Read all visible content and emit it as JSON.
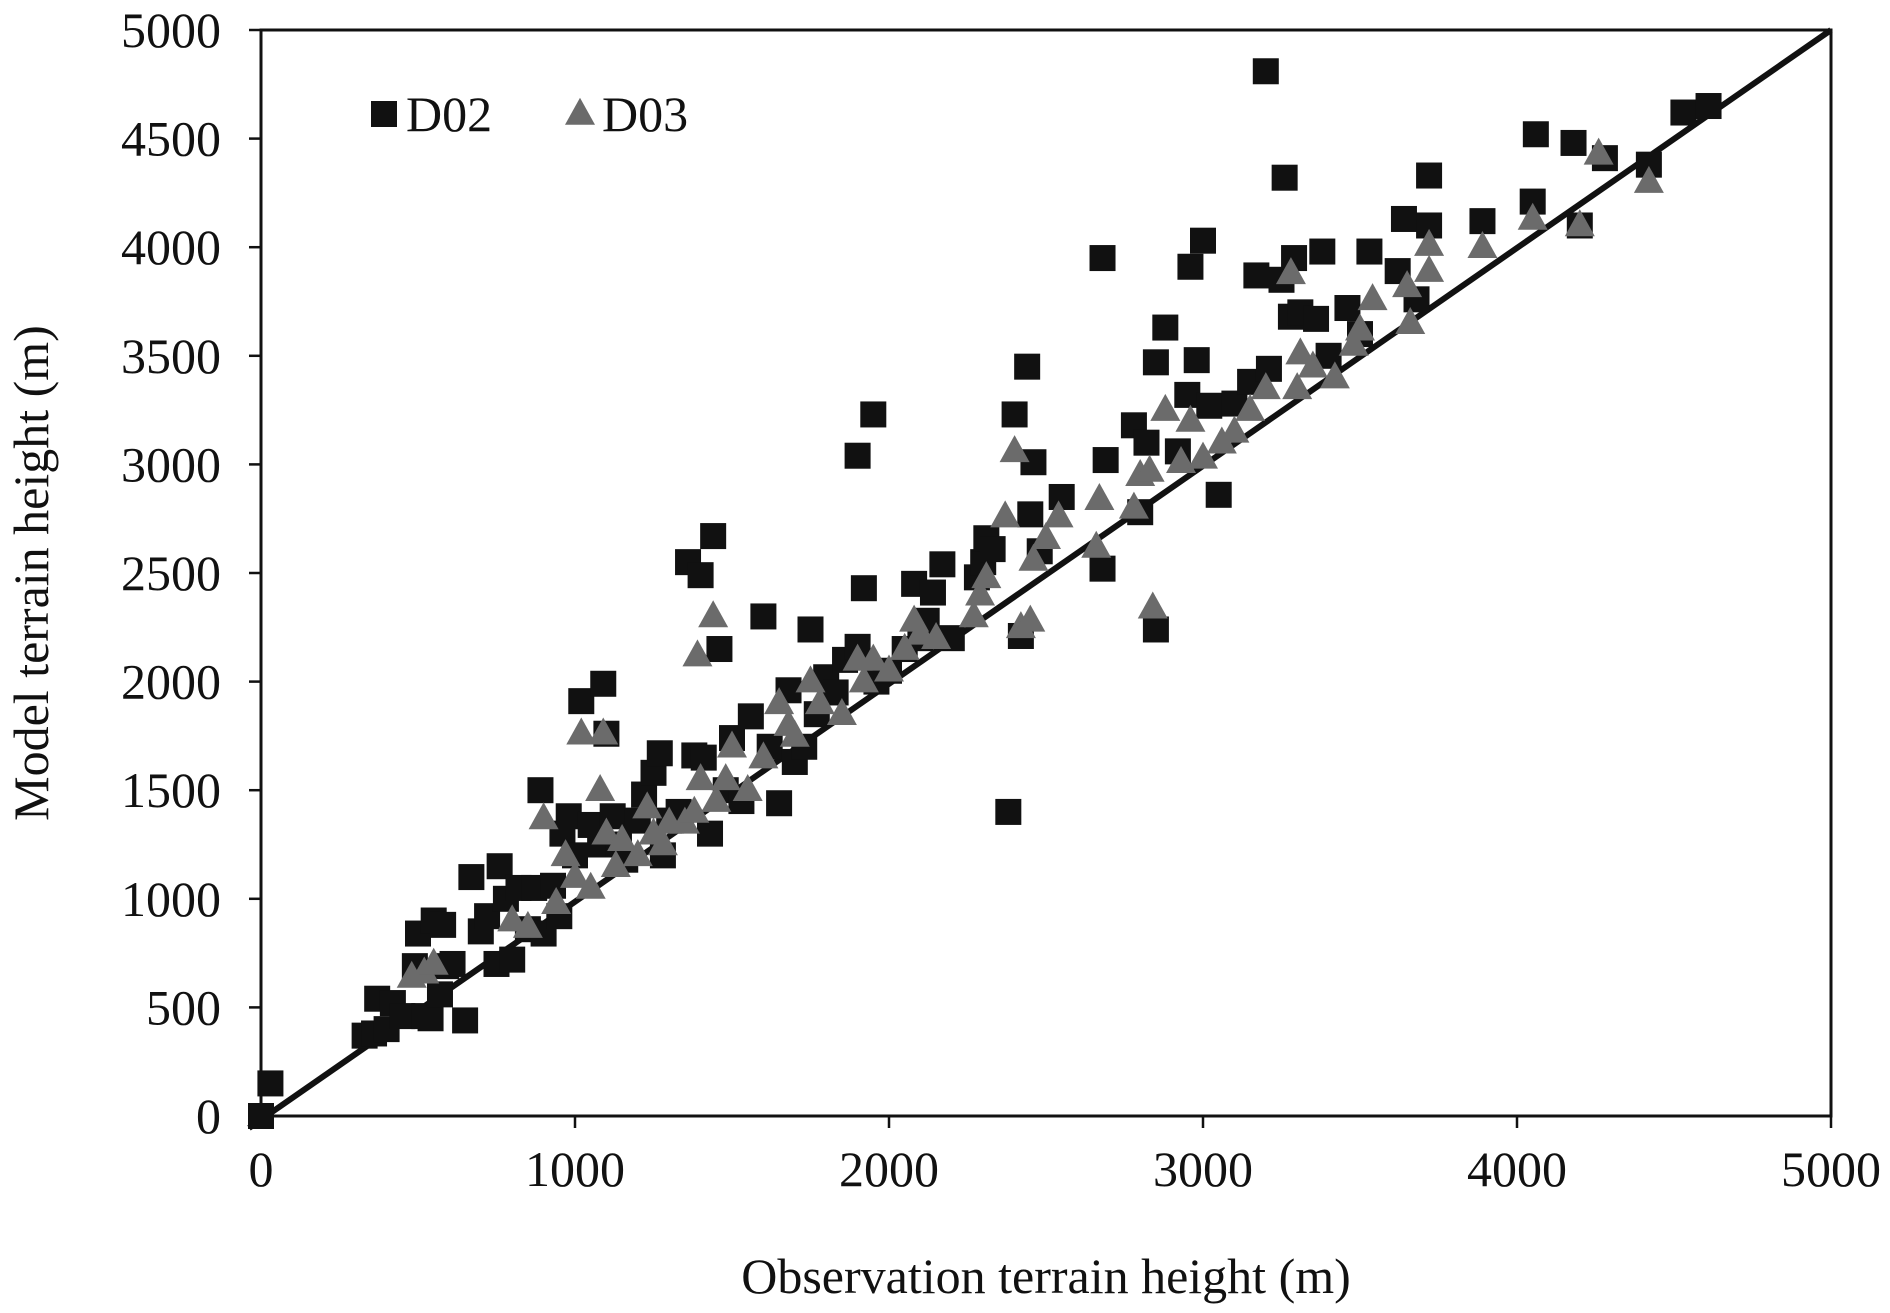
{
  "chart_data": {
    "type": "scatter",
    "title": "",
    "xlabel": "Observation terrain height (m)",
    "ylabel": "Model terrain height (m)",
    "xlim": [
      0,
      5000
    ],
    "ylim": [
      0,
      5000
    ],
    "xticks": [
      "0",
      "1000",
      "2000",
      "3000",
      "4000",
      "5000"
    ],
    "yticks": [
      "0",
      "500",
      "1000",
      "1500",
      "2000",
      "2500",
      "3000",
      "3500",
      "4000",
      "4500",
      "5000"
    ],
    "grid": false,
    "legend_position": "top-left",
    "reference_line": {
      "type": "1:1",
      "from": [
        0,
        0
      ],
      "to": [
        5000,
        5000
      ],
      "color": "#111111"
    },
    "series": [
      {
        "name": "D02",
        "marker": "square",
        "color": "#111111",
        "points": [
          [
            0,
            0
          ],
          [
            30,
            150
          ],
          [
            330,
            370
          ],
          [
            360,
            380
          ],
          [
            370,
            540
          ],
          [
            400,
            400
          ],
          [
            420,
            520
          ],
          [
            450,
            460
          ],
          [
            490,
            690
          ],
          [
            500,
            840
          ],
          [
            520,
            460
          ],
          [
            540,
            450
          ],
          [
            550,
            900
          ],
          [
            570,
            560
          ],
          [
            580,
            880
          ],
          [
            590,
            690
          ],
          [
            610,
            700
          ],
          [
            650,
            440
          ],
          [
            670,
            1100
          ],
          [
            700,
            850
          ],
          [
            720,
            920
          ],
          [
            750,
            700
          ],
          [
            760,
            1150
          ],
          [
            780,
            1000
          ],
          [
            800,
            720
          ],
          [
            820,
            1050
          ],
          [
            850,
            860
          ],
          [
            870,
            1050
          ],
          [
            890,
            1500
          ],
          [
            900,
            840
          ],
          [
            930,
            1060
          ],
          [
            950,
            920
          ],
          [
            960,
            1300
          ],
          [
            980,
            1380
          ],
          [
            1000,
            1200
          ],
          [
            1020,
            1910
          ],
          [
            1050,
            1340
          ],
          [
            1080,
            1250
          ],
          [
            1090,
            1990
          ],
          [
            1100,
            1760
          ],
          [
            1120,
            1380
          ],
          [
            1140,
            1250
          ],
          [
            1160,
            1180
          ],
          [
            1200,
            1360
          ],
          [
            1220,
            1480
          ],
          [
            1250,
            1580
          ],
          [
            1270,
            1670
          ],
          [
            1280,
            1200
          ],
          [
            1300,
            1360
          ],
          [
            1330,
            1400
          ],
          [
            1360,
            2550
          ],
          [
            1380,
            1660
          ],
          [
            1400,
            2490
          ],
          [
            1410,
            1650
          ],
          [
            1430,
            1300
          ],
          [
            1440,
            2670
          ],
          [
            1460,
            2150
          ],
          [
            1480,
            1500
          ],
          [
            1500,
            1740
          ],
          [
            1530,
            1450
          ],
          [
            1560,
            1840
          ],
          [
            1600,
            2300
          ],
          [
            1620,
            1700
          ],
          [
            1650,
            1440
          ],
          [
            1680,
            1960
          ],
          [
            1700,
            1630
          ],
          [
            1730,
            1700
          ],
          [
            1750,
            2240
          ],
          [
            1770,
            1850
          ],
          [
            1800,
            2020
          ],
          [
            1830,
            1950
          ],
          [
            1860,
            2100
          ],
          [
            1900,
            3040
          ],
          [
            1900,
            2160
          ],
          [
            1920,
            2430
          ],
          [
            1950,
            3230
          ],
          [
            1960,
            2000
          ],
          [
            2000,
            2050
          ],
          [
            2050,
            2150
          ],
          [
            2080,
            2450
          ],
          [
            2100,
            2200
          ],
          [
            2120,
            2280
          ],
          [
            2140,
            2410
          ],
          [
            2170,
            2540
          ],
          [
            2200,
            2200
          ],
          [
            2280,
            2480
          ],
          [
            2300,
            2550
          ],
          [
            2310,
            2660
          ],
          [
            2330,
            2610
          ],
          [
            2380,
            1400
          ],
          [
            2400,
            3230
          ],
          [
            2420,
            2210
          ],
          [
            2440,
            3450
          ],
          [
            2450,
            2770
          ],
          [
            2460,
            3010
          ],
          [
            2480,
            2600
          ],
          [
            2550,
            2850
          ],
          [
            2680,
            3950
          ],
          [
            2680,
            2520
          ],
          [
            2690,
            3020
          ],
          [
            2780,
            3180
          ],
          [
            2800,
            2780
          ],
          [
            2820,
            3100
          ],
          [
            2850,
            2240
          ],
          [
            2850,
            3470
          ],
          [
            2880,
            3630
          ],
          [
            2920,
            3060
          ],
          [
            2950,
            3320
          ],
          [
            2960,
            3910
          ],
          [
            2980,
            3480
          ],
          [
            3000,
            4030
          ],
          [
            3020,
            3270
          ],
          [
            3050,
            2860
          ],
          [
            3100,
            3280
          ],
          [
            3150,
            3380
          ],
          [
            3170,
            3870
          ],
          [
            3200,
            4810
          ],
          [
            3210,
            3440
          ],
          [
            3250,
            3850
          ],
          [
            3260,
            4320
          ],
          [
            3280,
            3680
          ],
          [
            3290,
            3950
          ],
          [
            3310,
            3700
          ],
          [
            3360,
            3670
          ],
          [
            3380,
            3980
          ],
          [
            3400,
            3500
          ],
          [
            3460,
            3720
          ],
          [
            3500,
            3600
          ],
          [
            3530,
            3980
          ],
          [
            3620,
            3890
          ],
          [
            3640,
            4130
          ],
          [
            3680,
            3760
          ],
          [
            3720,
            4330
          ],
          [
            3720,
            4100
          ],
          [
            3890,
            4120
          ],
          [
            4050,
            4210
          ],
          [
            4060,
            4520
          ],
          [
            4180,
            4480
          ],
          [
            4200,
            4100
          ],
          [
            4280,
            4410
          ],
          [
            4420,
            4380
          ],
          [
            4530,
            4620
          ],
          [
            4610,
            4650
          ]
        ]
      },
      {
        "name": "D03",
        "marker": "triangle",
        "color": "#6b6b6b",
        "points": [
          [
            480,
            640
          ],
          [
            520,
            660
          ],
          [
            550,
            700
          ],
          [
            800,
            900
          ],
          [
            850,
            870
          ],
          [
            900,
            1370
          ],
          [
            940,
            980
          ],
          [
            970,
            1200
          ],
          [
            1000,
            1100
          ],
          [
            1020,
            1760
          ],
          [
            1050,
            1050
          ],
          [
            1080,
            1500
          ],
          [
            1090,
            1760
          ],
          [
            1100,
            1300
          ],
          [
            1130,
            1150
          ],
          [
            1150,
            1270
          ],
          [
            1200,
            1200
          ],
          [
            1230,
            1420
          ],
          [
            1250,
            1300
          ],
          [
            1280,
            1250
          ],
          [
            1300,
            1350
          ],
          [
            1350,
            1350
          ],
          [
            1380,
            1400
          ],
          [
            1390,
            2120
          ],
          [
            1400,
            1550
          ],
          [
            1440,
            2300
          ],
          [
            1450,
            1450
          ],
          [
            1480,
            1550
          ],
          [
            1500,
            1700
          ],
          [
            1550,
            1500
          ],
          [
            1600,
            1650
          ],
          [
            1650,
            1900
          ],
          [
            1680,
            1800
          ],
          [
            1700,
            1750
          ],
          [
            1750,
            2000
          ],
          [
            1780,
            1900
          ],
          [
            1850,
            1850
          ],
          [
            1900,
            2100
          ],
          [
            1920,
            2000
          ],
          [
            1950,
            2100
          ],
          [
            2000,
            2050
          ],
          [
            2050,
            2150
          ],
          [
            2080,
            2280
          ],
          [
            2100,
            2220
          ],
          [
            2150,
            2200
          ],
          [
            2270,
            2300
          ],
          [
            2290,
            2400
          ],
          [
            2310,
            2480
          ],
          [
            2370,
            2760
          ],
          [
            2400,
            3060
          ],
          [
            2420,
            2250
          ],
          [
            2450,
            2280
          ],
          [
            2460,
            2560
          ],
          [
            2500,
            2660
          ],
          [
            2540,
            2760
          ],
          [
            2660,
            2620
          ],
          [
            2670,
            2840
          ],
          [
            2780,
            2800
          ],
          [
            2800,
            2950
          ],
          [
            2830,
            2970
          ],
          [
            2840,
            2340
          ],
          [
            2880,
            3250
          ],
          [
            2930,
            3010
          ],
          [
            2960,
            3200
          ],
          [
            3000,
            3030
          ],
          [
            3060,
            3100
          ],
          [
            3100,
            3150
          ],
          [
            3150,
            3250
          ],
          [
            3200,
            3350
          ],
          [
            3280,
            3880
          ],
          [
            3300,
            3350
          ],
          [
            3310,
            3510
          ],
          [
            3350,
            3450
          ],
          [
            3420,
            3400
          ],
          [
            3480,
            3550
          ],
          [
            3500,
            3620
          ],
          [
            3540,
            3760
          ],
          [
            3650,
            3820
          ],
          [
            3660,
            3650
          ],
          [
            3720,
            3890
          ],
          [
            3720,
            4010
          ],
          [
            3890,
            4000
          ],
          [
            4050,
            4130
          ],
          [
            4200,
            4100
          ],
          [
            4260,
            4430
          ],
          [
            4420,
            4300
          ]
        ]
      }
    ]
  }
}
